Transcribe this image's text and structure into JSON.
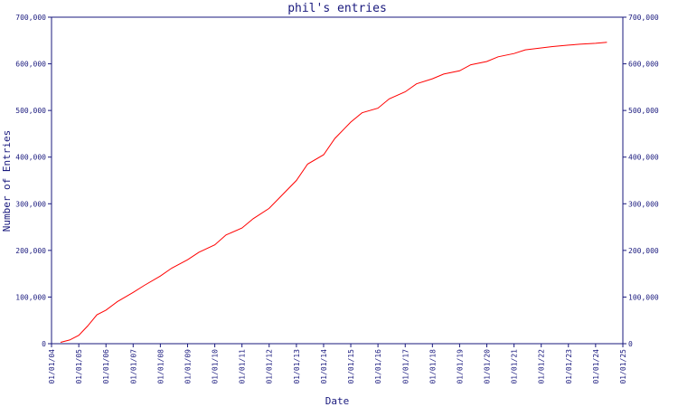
{
  "chart_data": {
    "type": "line",
    "title": "phil's entries",
    "xlabel": "Date",
    "ylabel": "Number of Entries",
    "ylim": [
      0,
      700000
    ],
    "xlim": [
      "2004-01-01",
      "2025-01-01"
    ],
    "y_ticks": [
      "0",
      "100,000",
      "200,000",
      "300,000",
      "400,000",
      "500,000",
      "600,000",
      "700,000"
    ],
    "x_ticks": [
      {
        "date": "2004-01-01",
        "label": "01/01/04"
      },
      {
        "date": "2005-01-01",
        "label": "01/01/05"
      },
      {
        "date": "2006-01-01",
        "label": "01/01/06"
      },
      {
        "date": "2007-01-01",
        "label": "01/01/07"
      },
      {
        "date": "2008-01-01",
        "label": "01/01/08"
      },
      {
        "date": "2009-01-01",
        "label": "01/01/09"
      },
      {
        "date": "2010-01-01",
        "label": "01/01/10"
      },
      {
        "date": "2011-01-01",
        "label": "01/01/11"
      },
      {
        "date": "2012-01-01",
        "label": "01/01/12"
      },
      {
        "date": "2013-01-01",
        "label": "01/01/13"
      },
      {
        "date": "2014-01-01",
        "label": "01/01/14"
      },
      {
        "date": "2015-01-01",
        "label": "01/01/15"
      },
      {
        "date": "2016-01-01",
        "label": "01/01/16"
      },
      {
        "date": "2017-01-01",
        "label": "01/01/17"
      },
      {
        "date": "2018-01-01",
        "label": "01/01/18"
      },
      {
        "date": "2019-01-01",
        "label": "01/01/19"
      },
      {
        "date": "2020-01-01",
        "label": "01/01/20"
      },
      {
        "date": "2021-01-01",
        "label": "01/01/21"
      },
      {
        "date": "2022-01-01",
        "label": "01/01/22"
      },
      {
        "date": "2023-01-01",
        "label": "01/01/23"
      },
      {
        "date": "2024-01-01",
        "label": "01/01/24"
      },
      {
        "date": "2025-01-01",
        "label": "01/01/25"
      }
    ],
    "grid": false,
    "legend": "none",
    "colors": {
      "line": "#ff0000",
      "axis": "#1a1a7e",
      "text": "#1a1a7e"
    },
    "series": [
      {
        "x": [
          "2004-05-01",
          "2004-09-01",
          "2005-01-01",
          "2005-05-01",
          "2005-09-01",
          "2006-01-01",
          "2006-06-01",
          "2007-01-01",
          "2007-06-01",
          "2008-01-01",
          "2008-06-01",
          "2009-01-01",
          "2009-06-01",
          "2010-01-01",
          "2010-06-01",
          "2011-01-01",
          "2011-06-01",
          "2012-01-01",
          "2012-06-01",
          "2013-01-01",
          "2013-06-01",
          "2014-01-01",
          "2014-06-01",
          "2015-01-01",
          "2015-06-01",
          "2016-01-01",
          "2016-06-01",
          "2017-01-01",
          "2017-06-01",
          "2018-01-01",
          "2018-06-01",
          "2019-01-01",
          "2019-06-01",
          "2020-01-01",
          "2020-06-01",
          "2021-01-01",
          "2021-06-01",
          "2022-01-01",
          "2022-06-01",
          "2023-01-01",
          "2023-06-01",
          "2024-01-01",
          "2024-06-01"
        ],
        "y": [
          3000,
          8000,
          18000,
          38000,
          62000,
          72000,
          90000,
          110000,
          125000,
          145000,
          162000,
          180000,
          196000,
          212000,
          233000,
          248000,
          268000,
          290000,
          315000,
          350000,
          385000,
          405000,
          440000,
          475000,
          495000,
          505000,
          525000,
          540000,
          557000,
          568000,
          578000,
          585000,
          598000,
          605000,
          615000,
          622000,
          630000,
          634000,
          637000,
          640000,
          642000,
          644000,
          646000
        ]
      }
    ]
  }
}
